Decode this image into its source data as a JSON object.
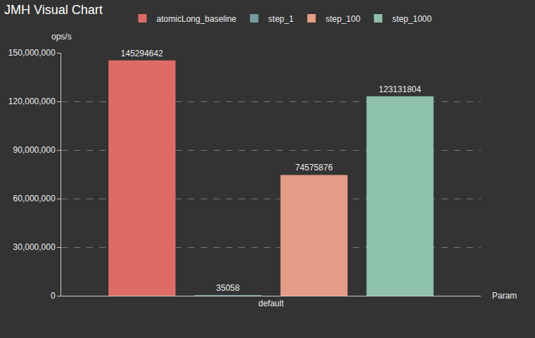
{
  "chart_data": {
    "type": "bar",
    "title": "JMH Visual Chart",
    "x_label": "Param",
    "y_label": "ops/s",
    "categories": [
      "default"
    ],
    "series": [
      {
        "name": "atomicLong_baseline",
        "color": "#dd6b66",
        "values": [
          145294642
        ]
      },
      {
        "name": "step_1",
        "color": "#759aa0",
        "values": [
          35058
        ]
      },
      {
        "name": "step_100",
        "color": "#e69d87",
        "values": [
          74575876
        ]
      },
      {
        "name": "step_1000",
        "color": "#8dc1a9",
        "values": [
          123131804
        ]
      }
    ],
    "ylim": [
      0,
      150000000
    ],
    "yticks": [
      0,
      {
        "value": 30000000,
        "label": "30,000,000"
      },
      {
        "value": 60000000,
        "label": "60,000,000"
      },
      {
        "value": 90000000,
        "label": "90,000,000"
      },
      {
        "value": 120000000,
        "label": "120,000,000"
      },
      {
        "value": 150000000,
        "label": "150,000,000"
      }
    ],
    "grid": true,
    "legend": "top",
    "data_labels": true
  }
}
